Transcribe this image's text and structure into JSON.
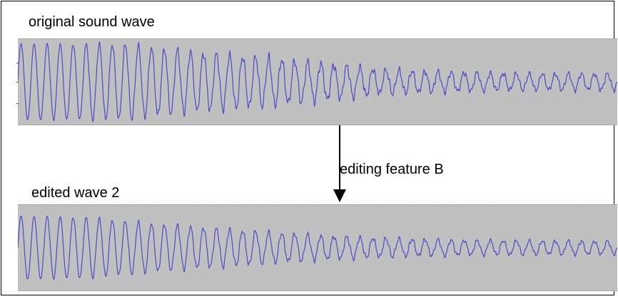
{
  "labels": {
    "original": "original sound wave",
    "edited": "edited wave 2",
    "feature": "editing feature B"
  },
  "colors": {
    "frame": "#000000",
    "panel": "#c0c0c0",
    "wave": "#4b4bc8",
    "arrow": "#000000",
    "text": "#000000"
  },
  "waves": {
    "original": {
      "cycles": 46,
      "envelope": [
        [
          0,
          0.94
        ],
        [
          0.18,
          0.92
        ],
        [
          0.3,
          0.72
        ],
        [
          0.42,
          0.58
        ],
        [
          0.52,
          0.44
        ],
        [
          0.6,
          0.3
        ],
        [
          0.72,
          0.24
        ],
        [
          0.85,
          0.2
        ],
        [
          1.0,
          0.2
        ]
      ],
      "noise": 0.35
    },
    "edited": {
      "cycles": 46,
      "envelope": [
        [
          0,
          0.78
        ],
        [
          0.12,
          0.74
        ],
        [
          0.25,
          0.56
        ],
        [
          0.38,
          0.42
        ],
        [
          0.5,
          0.3
        ],
        [
          0.62,
          0.22
        ],
        [
          0.75,
          0.18
        ],
        [
          1.0,
          0.16
        ]
      ],
      "noise": 0.3
    }
  }
}
